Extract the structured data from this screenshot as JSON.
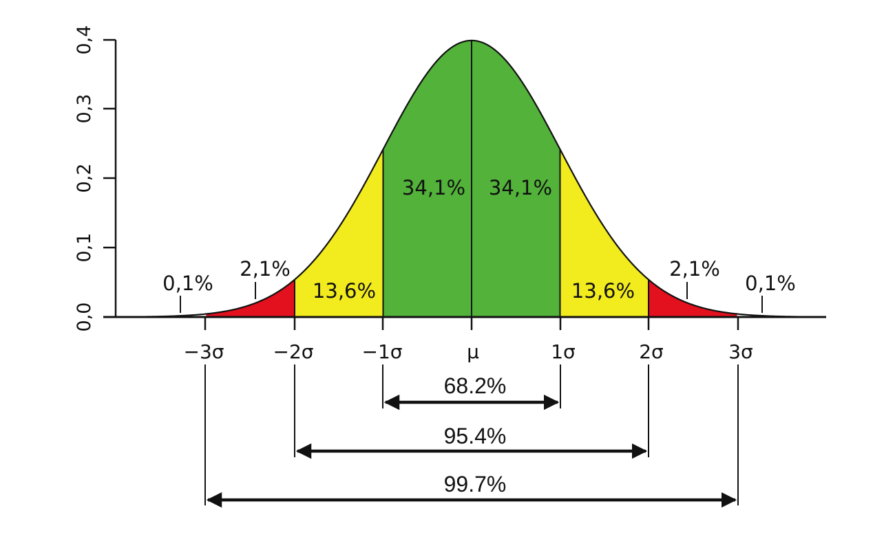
{
  "chart_data": {
    "type": "area",
    "title": "",
    "xlabel": "",
    "ylabel": "",
    "distribution": "normal",
    "ylim": [
      0,
      0.4
    ],
    "xlim_sigma": [
      -4,
      4
    ],
    "grid": false,
    "y_ticks": [
      "0,0",
      "0,1",
      "0,2",
      "0,3",
      "0,4"
    ],
    "y_tick_values": [
      0.0,
      0.1,
      0.2,
      0.3,
      0.4
    ],
    "x_ticks": [
      "−3σ",
      "−2σ",
      "−1σ",
      "μ",
      "1σ",
      "2σ",
      "3σ"
    ],
    "x_tick_values": [
      -3,
      -2,
      -1,
      0,
      1,
      2,
      3
    ],
    "regions": [
      {
        "from": -3,
        "to": -2,
        "label": "2,1%",
        "value": 2.1,
        "color": "#e3101e"
      },
      {
        "from": -2,
        "to": -1,
        "label": "13,6%",
        "value": 13.6,
        "color": "#f2eb1e"
      },
      {
        "from": -1,
        "to": 0,
        "label": "34,1%",
        "value": 34.1,
        "color": "#52b23a"
      },
      {
        "from": 0,
        "to": 1,
        "label": "34,1%",
        "value": 34.1,
        "color": "#52b23a"
      },
      {
        "from": 1,
        "to": 2,
        "label": "13,6%",
        "value": 13.6,
        "color": "#f2eb1e"
      },
      {
        "from": 2,
        "to": 3,
        "label": "2,1%",
        "value": 2.1,
        "color": "#e3101e"
      }
    ],
    "tails": [
      {
        "side": "left",
        "label": "0,1%",
        "value": 0.1
      },
      {
        "side": "right",
        "label": "0,1%",
        "value": 0.1
      }
    ],
    "ranges": [
      {
        "from": -1,
        "to": 1,
        "label": "68.2%",
        "value": 68.2
      },
      {
        "from": -2,
        "to": 2,
        "label": "95.4%",
        "value": 95.4
      },
      {
        "from": -3,
        "to": 3,
        "label": "99.7%",
        "value": 99.7
      }
    ]
  },
  "labels": {
    "y": [
      "0,0",
      "0,1",
      "0,2",
      "0,3",
      "0,4"
    ],
    "x": [
      "−3σ",
      "−2σ",
      "−1σ",
      "μ",
      "1σ",
      "2σ",
      "3σ"
    ],
    "tail_left": "0,1%",
    "tail_right": "0,1%",
    "red_left": "2,1%",
    "red_right": "2,1%",
    "yellow_left": "13,6%",
    "yellow_right": "13,6%",
    "green_left": "34,1%",
    "green_right": "34,1%",
    "range_1": "68.2%",
    "range_2": "95.4%",
    "range_3": "99.7%"
  },
  "colors": {
    "red": "#e3101e",
    "yellow": "#f2eb1e",
    "green": "#52b23a",
    "line": "#111111"
  }
}
